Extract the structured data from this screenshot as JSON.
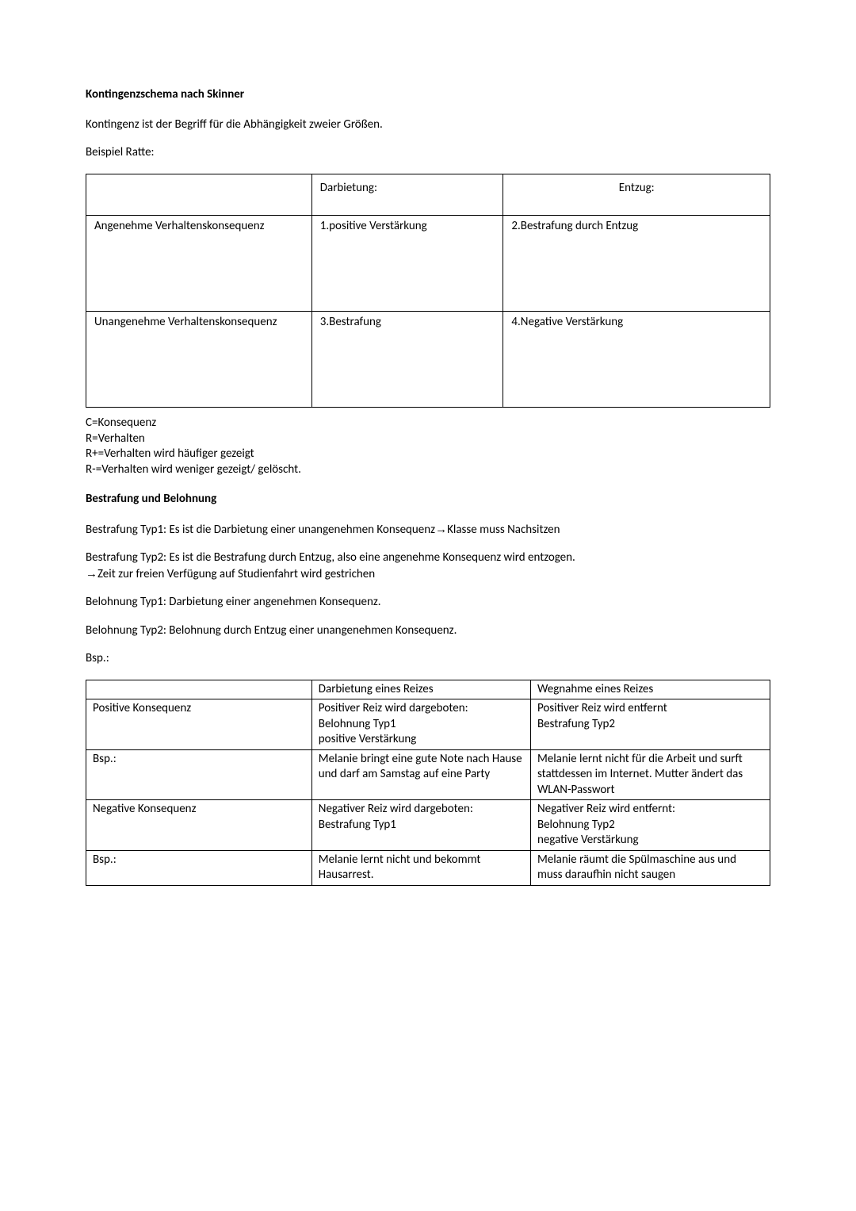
{
  "heading1": "Kontingenzschema nach Skinner",
  "intro": "Kontingenz ist der Begriff für die Abhängigkeit zweier Größen.",
  "example_label": "Beispiel Ratte:",
  "table1": {
    "header_empty": "",
    "header_col2": "Darbietung:",
    "header_col3": "Entzug:",
    "row1_label": "Angenehme Verhaltenskonsequenz",
    "row1_col2": "1.positive Verstärkung",
    "row1_col3": "2.Bestrafung durch Entzug",
    "row2_label": "Unangenehme Verhaltenskonsequenz",
    "row2_col2": "3.Bestrafung",
    "row2_col3": "4.Negative Verstärkung",
    "col_widths": [
      "33%",
      "28%",
      "39%"
    ],
    "border_color": "#000000"
  },
  "legend": {
    "l1": "C=Konsequenz",
    "l2": "R=Verhalten",
    "l3": "R+=Verhalten wird häufiger gezeigt",
    "l4": "R-=Verhalten wird weniger gezeigt/ gelöscht."
  },
  "heading2": "Bestrafung und Belohnung",
  "p1_a": "Bestrafung Typ1: Es ist die Darbietung einer unangenehmen Konsequenz",
  "p1_b": "Klasse muss Nachsitzen",
  "p2_a": "Bestrafung Typ2: Es ist die Bestrafung durch Entzug, also eine angenehme Konsequenz wird entzogen. ",
  "p2_b": "Zeit zur freien Verfügung auf Studienfahrt wird gestrichen",
  "p3": "Belohnung Typ1: Darbietung einer angenehmen Konsequenz.",
  "p4": "Belohnung Typ2: Belohnung durch Entzug einer unangenehmen Konsequenz.",
  "bsp_label": "Bsp.:",
  "arrow": "→",
  "table2": {
    "col_widths": [
      "33%",
      "32%",
      "35%"
    ],
    "border_color": "#000000",
    "rows": [
      {
        "c0": "",
        "c1": "Darbietung eines Reizes",
        "c2": "Wegnahme eines Reizes"
      },
      {
        "c0": "Positive Konsequenz",
        "c1": "Positiver Reiz wird dargeboten:\nBelohnung Typ1\npositive Verstärkung",
        "c2": "Positiver Reiz wird entfernt\nBestrafung Typ2"
      },
      {
        "c0": "Bsp.:",
        "c1": "Melanie bringt eine gute Note nach Hause und darf am Samstag auf eine Party",
        "c2": "Melanie lernt nicht für die Arbeit und surft stattdessen im Internet. Mutter ändert das WLAN-Passwort"
      },
      {
        "c0": "Negative Konsequenz",
        "c1": "Negativer Reiz wird dargeboten:\nBestrafung Typ1",
        "c2": "Negativer Reiz wird entfernt:\nBelohnung Typ2\nnegative Verstärkung"
      },
      {
        "c0": "Bsp.:",
        "c1": "Melanie lernt nicht und bekommt Hausarrest.",
        "c2": "Melanie räumt die Spülmaschine aus und muss daraufhin nicht saugen"
      }
    ]
  },
  "font": {
    "family": "Calibri, 'Segoe UI', Arial, sans-serif",
    "size_pt": 11,
    "heading_weight": "bold",
    "color": "#000000"
  },
  "background_color": "#ffffff"
}
